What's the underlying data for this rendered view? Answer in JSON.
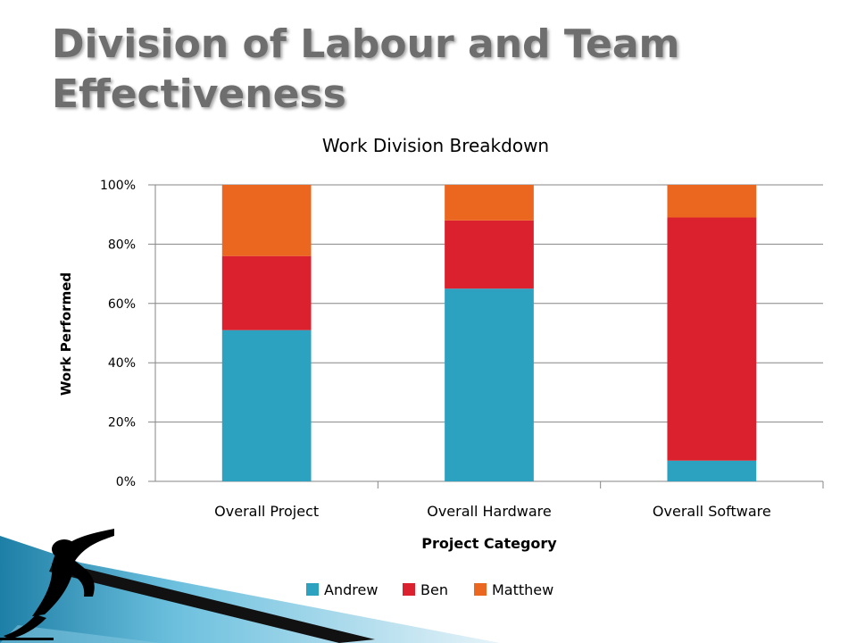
{
  "slide": {
    "title": "Division of Labour and Team Effectiveness"
  },
  "icons": {
    "decoration": "speed-skater-silhouette-icon"
  },
  "chart_data": {
    "type": "bar",
    "stacked": true,
    "title": "Work Division Breakdown",
    "xlabel": "Project Category",
    "ylabel": "Work Performed",
    "categories": [
      "Overall Project",
      "Overall Hardware",
      "Overall Software"
    ],
    "ylim": [
      0,
      100
    ],
    "yticks": [
      "0%",
      "20%",
      "40%",
      "60%",
      "80%",
      "100%"
    ],
    "series": [
      {
        "name": "Andrew",
        "color": "#2ca2c0",
        "values": [
          51,
          65,
          7
        ]
      },
      {
        "name": "Ben",
        "color": "#db212d",
        "values": [
          25,
          23,
          82
        ]
      },
      {
        "name": "Matthew",
        "color": "#eb6720",
        "values": [
          24,
          12,
          11
        ]
      }
    ],
    "grid": true,
    "legend": "bottom"
  }
}
